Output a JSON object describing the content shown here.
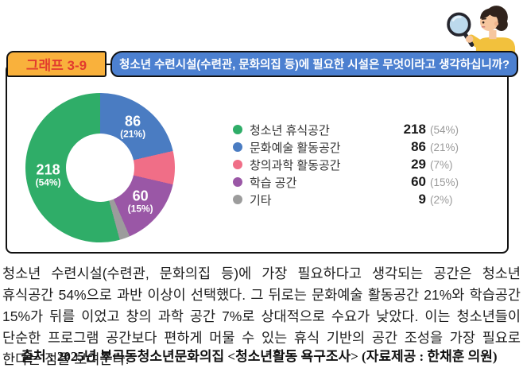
{
  "header": {
    "badge": "그래프 3-9",
    "question": "청소년 수련시설(수련관, 문화의집 등)에 필요한 시설은 무엇이라고 생각하십니까?"
  },
  "chart_data": {
    "type": "pie",
    "donut": true,
    "title": "",
    "categories": [
      "청소년 휴식공간",
      "문화예술 활동공간",
      "창의과학 활동공간",
      "학습 공간",
      "기타"
    ],
    "values": [
      218,
      86,
      29,
      60,
      9
    ],
    "percents": [
      54,
      21,
      7,
      15,
      2
    ],
    "colors": [
      "#2fad68",
      "#4a7cc2",
      "#f06e87",
      "#9a57a6",
      "#9c9c9c"
    ],
    "draw_order": [
      1,
      2,
      3,
      4,
      0
    ],
    "labeled_on_chart": [
      true,
      true,
      false,
      true,
      false
    ],
    "start_angle_deg": 0,
    "direction": "clockwise",
    "legend_position": "right"
  },
  "analysis": {
    "text": "청소년 수련시설(수련관, 문화의집 등)에 가장 필요하다고 생각되는 공간은 청소년 휴식공간 54%으로 과반 이상이 선택했다. 그 뒤로는 문화예술 활동공간 21%와 학습공간 15%가 뒤를 이었고 창의 과학 공간 7%로 상대적으로 수요가 낮았다. 이는 청소년들이 단순한 프로그램 공간보다 편하게 머물 수 있는 휴식 기반의 공간 조성을 가장 필요로 한다는 점을 보여준다."
  },
  "source": {
    "text": "출처 : 2025년 부곡동청소년문화의집 <청소년활동 욕구조사> (자료제공 : 한채훈 의원)"
  },
  "colors": {
    "banner_blue": "#4c80d0",
    "badge_yellow": "#f9b13c",
    "badge_text_red": "#e23b2e",
    "percent_gray": "#9a9a9a",
    "frame_border": "#111111"
  }
}
